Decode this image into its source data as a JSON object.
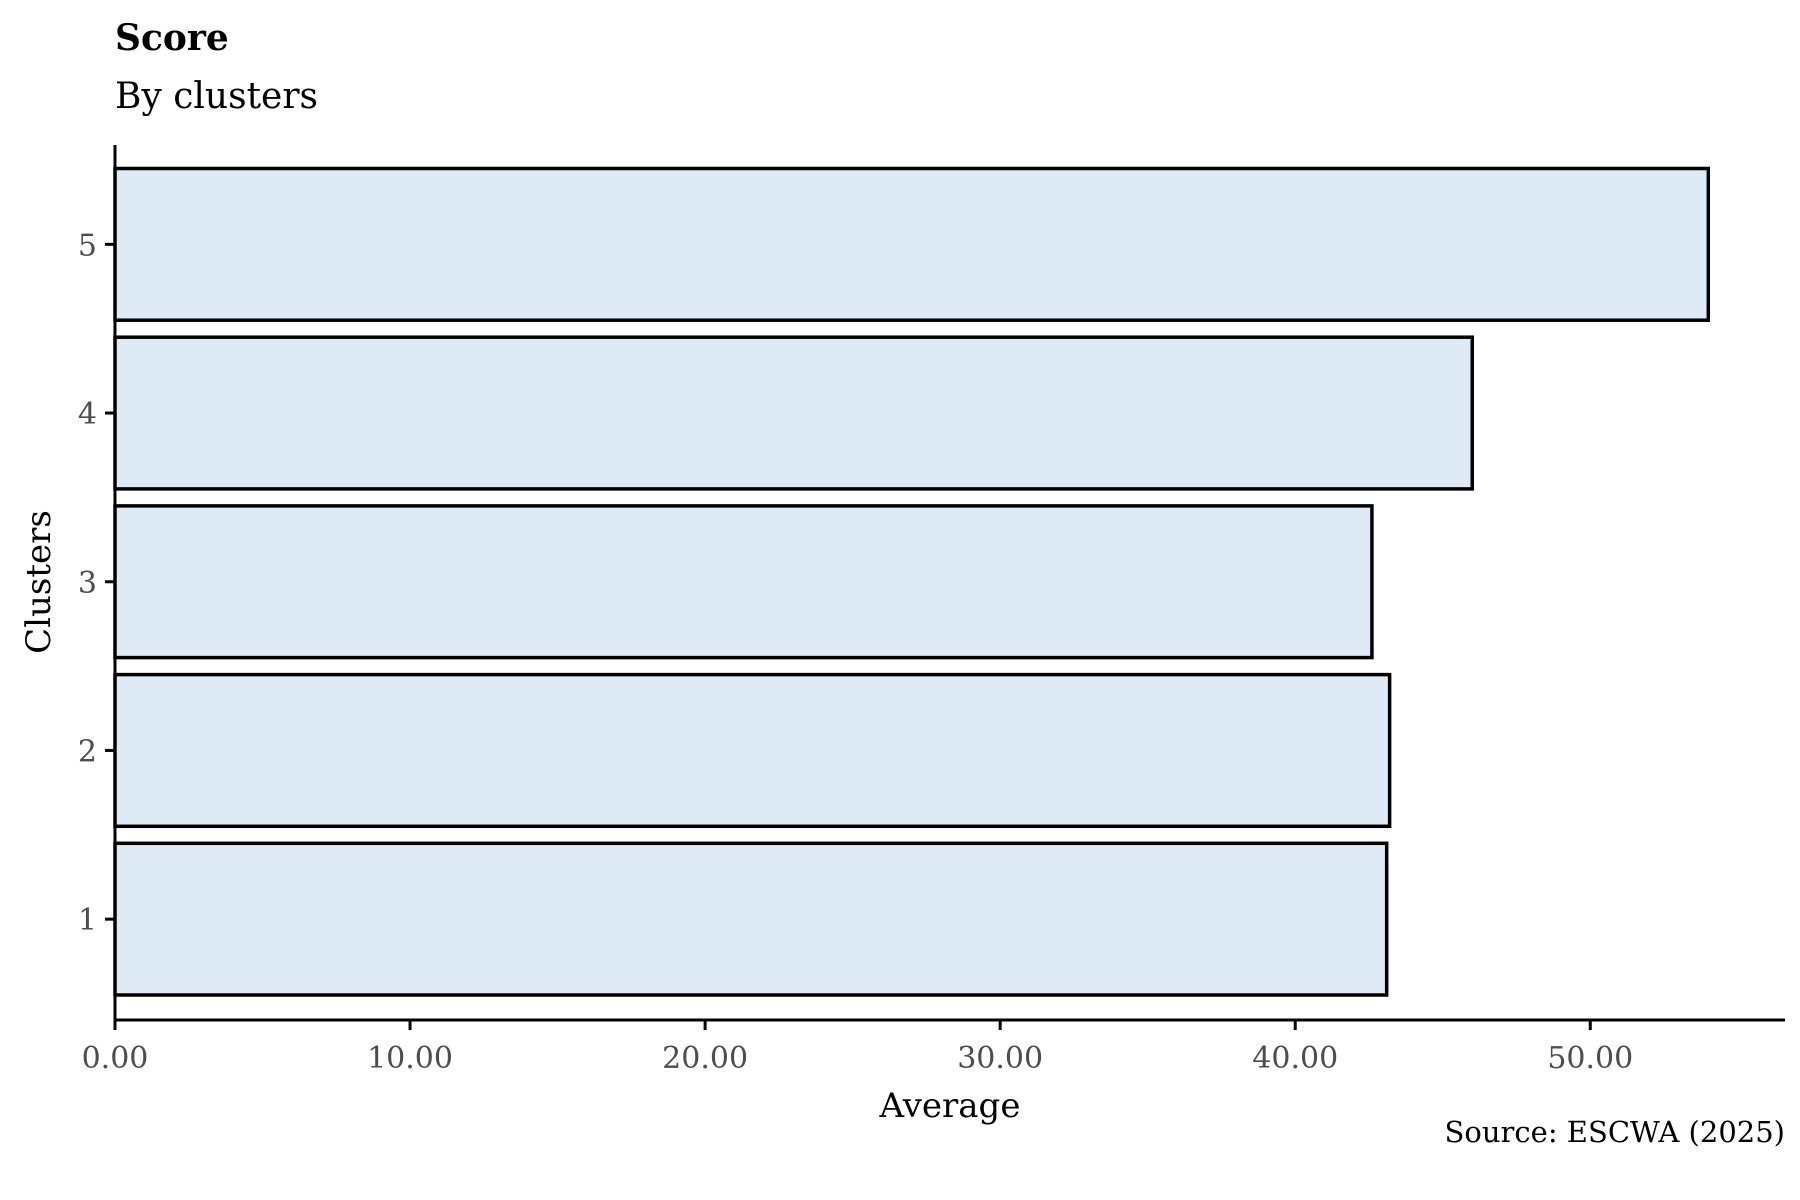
{
  "chart_data": {
    "type": "bar",
    "orientation": "horizontal",
    "title": "Score",
    "subtitle": "By clusters",
    "xlabel": "Average",
    "ylabel": "Clusters",
    "caption": "Source: ESCWA (2025)",
    "categories": [
      "1",
      "2",
      "3",
      "4",
      "5"
    ],
    "values": [
      43.1,
      43.2,
      42.6,
      46.0,
      54.0
    ],
    "xlim": [
      0,
      56.6
    ],
    "xticks": [
      0,
      10,
      20,
      30,
      40,
      50
    ],
    "xtick_labels": [
      "0.00",
      "10.00",
      "20.00",
      "30.00",
      "40.00",
      "50.00"
    ],
    "grid": false,
    "bar_fill": "#deeaf6",
    "bar_outline": "#000000"
  }
}
